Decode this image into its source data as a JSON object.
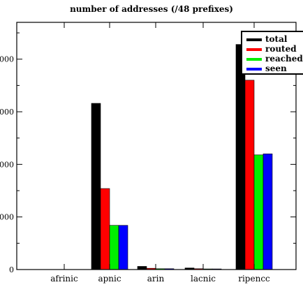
{
  "chart_data": {
    "type": "bar",
    "title": "number of addresses (/48 prefixes)",
    "xlabel": "",
    "ylabel": "",
    "categories": [
      "afrinic",
      "apnic",
      "arin",
      "lacnic",
      "ripencc"
    ],
    "ylim": [
      0,
      23500
    ],
    "grid": false,
    "legend_position": "top-right",
    "series": [
      {
        "name": "total",
        "color": "#000000",
        "values": [
          0,
          15800,
          300,
          150,
          21400
        ]
      },
      {
        "name": "routed",
        "color": "#ff0000",
        "values": [
          0,
          7700,
          120,
          80,
          18000
        ]
      },
      {
        "name": "reached",
        "color": "#00ee00",
        "values": [
          0,
          4200,
          80,
          60,
          10900
        ]
      },
      {
        "name": "seen",
        "color": "#0000ff",
        "values": [
          0,
          4200,
          80,
          60,
          11000
        ]
      }
    ]
  }
}
